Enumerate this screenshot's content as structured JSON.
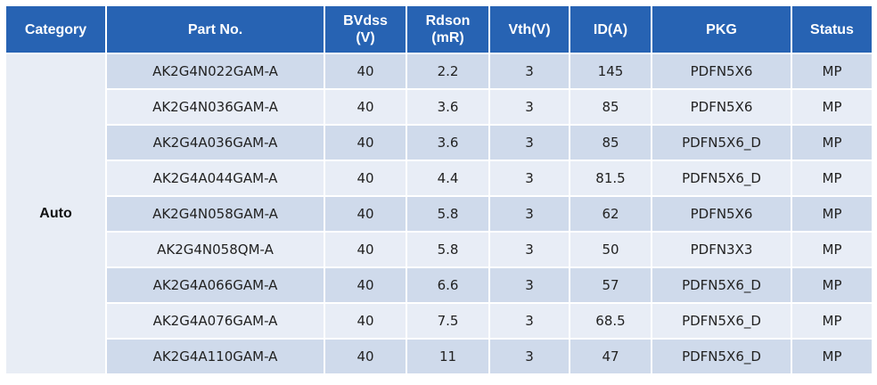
{
  "table": {
    "columns": [
      "Category",
      "Part No.",
      "BVdss\n(V)",
      "Rdson\n(mR)",
      "Vth(V)",
      "ID(A)",
      "PKG",
      "Status"
    ],
    "category": "Auto",
    "rows": [
      [
        "AK2G4N022GAM-A",
        40,
        2.2,
        3,
        145,
        "PDFN5X6",
        "MP"
      ],
      [
        "AK2G4N036GAM-A",
        40,
        3.6,
        3,
        85,
        "PDFN5X6",
        "MP"
      ],
      [
        "AK2G4A036GAM-A",
        40,
        3.6,
        3,
        85,
        "PDFN5X6_D",
        "MP"
      ],
      [
        "AK2G4A044GAM-A",
        40,
        4.4,
        3,
        81.5,
        "PDFN5X6_D",
        "MP"
      ],
      [
        "AK2G4N058GAM-A",
        40,
        5.8,
        3,
        62,
        "PDFN5X6",
        "MP"
      ],
      [
        "AK2G4N058QM-A",
        40,
        5.8,
        3,
        50,
        "PDFN3X3",
        "MP"
      ],
      [
        "AK2G4A066GAM-A",
        40,
        6.6,
        3,
        57,
        "PDFN5X6_D",
        "MP"
      ],
      [
        "AK2G4A076GAM-A",
        40,
        7.5,
        3,
        68.5,
        "PDFN5X6_D",
        "MP"
      ],
      [
        "AK2G4A110GAM-A",
        40,
        11,
        3,
        47,
        "PDFN5X6_D",
        "MP"
      ]
    ]
  }
}
